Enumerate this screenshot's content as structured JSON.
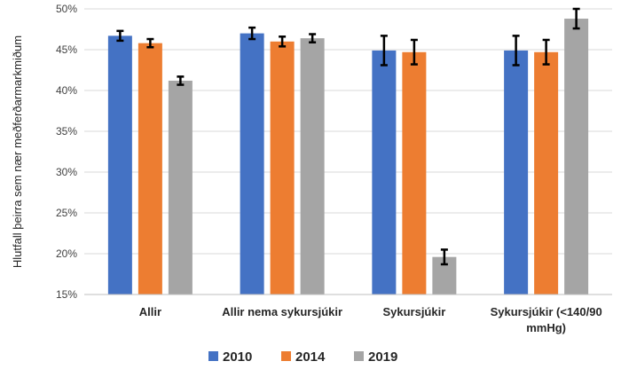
{
  "chart_data": {
    "type": "bar",
    "ylabel": "Hlutfall þeirra sem nær meðferðarmarkmiðum",
    "xlabel": "",
    "ylim": [
      15,
      50
    ],
    "yticks": [
      15,
      20,
      25,
      30,
      35,
      40,
      45,
      50
    ],
    "ytick_labels": [
      "15%",
      "20%",
      "25%",
      "30%",
      "35%",
      "40%",
      "45%",
      "50%"
    ],
    "grid": "horizontal",
    "legend_position": "bottom",
    "categories": [
      [
        "Allir"
      ],
      [
        "Allir nema sykursjúkir"
      ],
      [
        "Sykursjúkir"
      ],
      [
        "Sykursjúkir (<140/90",
        "mmHg)"
      ]
    ],
    "series": [
      {
        "name": "2010",
        "color": "#4472C4",
        "values": [
          46.7,
          47.0,
          44.9,
          44.9
        ],
        "errors": [
          0.6,
          0.7,
          1.8,
          1.8
        ]
      },
      {
        "name": "2014",
        "color": "#ED7D31",
        "values": [
          45.8,
          46.0,
          44.7,
          44.7
        ],
        "errors": [
          0.5,
          0.6,
          1.5,
          1.5
        ]
      },
      {
        "name": "2019",
        "color": "#A5A5A5",
        "values": [
          41.2,
          46.4,
          19.6,
          48.8
        ],
        "errors": [
          0.5,
          0.5,
          0.9,
          1.2
        ]
      }
    ]
  }
}
